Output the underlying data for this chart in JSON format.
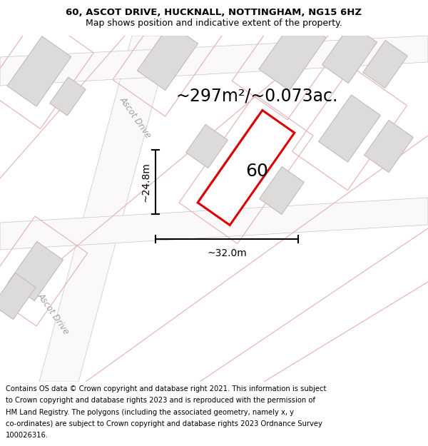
{
  "title_line1": "60, ASCOT DRIVE, HUCKNALL, NOTTINGHAM, NG15 6HZ",
  "title_line2": "Map shows position and indicative extent of the property.",
  "area_text": "~297m²/~0.073ac.",
  "label_60": "60",
  "dim_width": "~32.0m",
  "dim_height": "~24.8m",
  "street_label1": "Ascot Drive",
  "street_label2": "Ascot Drive",
  "footer_lines": [
    "Contains OS data © Crown copyright and database right 2021. This information is subject",
    "to Crown copyright and database rights 2023 and is reproduced with the permission of",
    "HM Land Registry. The polygons (including the associated geometry, namely x, y",
    "co-ordinates) are subject to Crown copyright and database rights 2023 Ordnance Survey",
    "100026316."
  ],
  "map_bg": "#eeecec",
  "road_color": "#faf8f8",
  "building_fill": "#dddada",
  "building_stroke": "#c0bcbc",
  "plot_line_color": "#e8b8b8",
  "highlight_color": "#dd0000",
  "title_fontsize": 9.5,
  "footer_fontsize": 7.2,
  "area_fontsize": 17,
  "label_fontsize": 18,
  "dim_fontsize": 10,
  "street_fontsize": 8.5
}
